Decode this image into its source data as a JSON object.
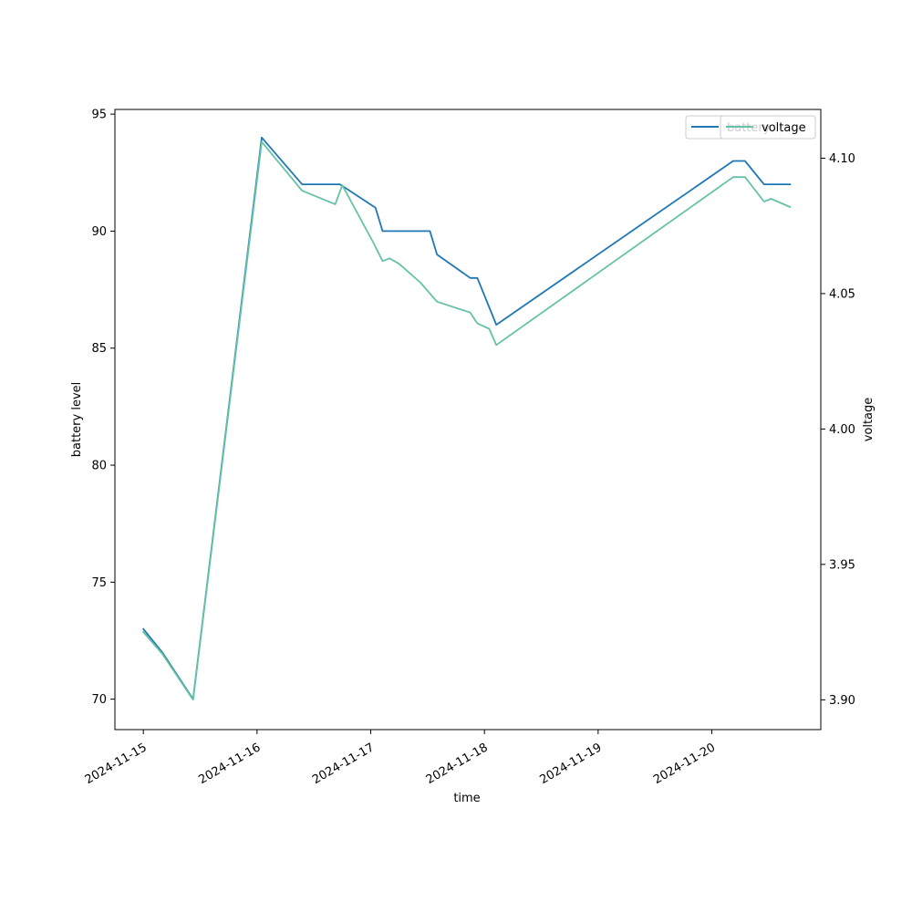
{
  "chart_data": {
    "type": "line",
    "xlabel": "time",
    "ylabel_left": "battery level",
    "ylabel_right": "voltage",
    "x_range": [
      "2024-11-14 18:00",
      "2024-11-20 23:00"
    ],
    "ylim_left": [
      68.7,
      95.2
    ],
    "ylim_right": [
      3.889,
      4.118
    ],
    "x_ticks": [
      "2024-11-15",
      "2024-11-16",
      "2024-11-17",
      "2024-11-18",
      "2024-11-19",
      "2024-11-20"
    ],
    "y_ticks_left": [
      "70",
      "75",
      "80",
      "85",
      "90",
      "95"
    ],
    "y_ticks_right": [
      "3.90",
      "3.95",
      "4.00",
      "4.05",
      "4.10"
    ],
    "grid": false,
    "colors": {
      "battery": "#1f77b4",
      "voltage": "#66c2a5"
    },
    "legends": [
      {
        "placement": "top-right",
        "label": "battery",
        "color": "#1f77b4"
      },
      {
        "placement": "top-right",
        "label": "voltage",
        "color": "#66c2a5"
      }
    ],
    "series": [
      {
        "name": "battery",
        "axis": "left",
        "color": "#1f77b4",
        "points": [
          [
            "2024-11-15 00:00",
            73
          ],
          [
            "2024-11-15 04:00",
            72
          ],
          [
            "2024-11-15 10:30",
            70
          ],
          [
            "2024-11-16 01:00",
            94
          ],
          [
            "2024-11-16 09:30",
            92
          ],
          [
            "2024-11-16 17:30",
            92
          ],
          [
            "2024-11-17 01:00",
            91
          ],
          [
            "2024-11-17 02:30",
            90
          ],
          [
            "2024-11-17 12:30",
            90
          ],
          [
            "2024-11-17 14:00",
            89
          ],
          [
            "2024-11-17 21:00",
            88
          ],
          [
            "2024-11-17 22:30",
            88
          ],
          [
            "2024-11-18 02:30",
            86
          ],
          [
            "2024-11-20 04:30",
            93
          ],
          [
            "2024-11-20 07:00",
            93
          ],
          [
            "2024-11-20 11:00",
            92
          ],
          [
            "2024-11-20 16:30",
            92
          ]
        ]
      },
      {
        "name": "voltage",
        "axis": "right",
        "color": "#66c2a5",
        "points": [
          [
            "2024-11-15 00:00",
            3.925
          ],
          [
            "2024-11-15 04:00",
            3.917
          ],
          [
            "2024-11-15 10:30",
            3.9
          ],
          [
            "2024-11-16 01:00",
            4.106
          ],
          [
            "2024-11-16 09:30",
            4.088
          ],
          [
            "2024-11-16 16:30",
            4.083
          ],
          [
            "2024-11-16 18:00",
            4.09
          ],
          [
            "2024-11-17 00:30",
            4.069
          ],
          [
            "2024-11-17 02:30",
            4.062
          ],
          [
            "2024-11-17 04:00",
            4.063
          ],
          [
            "2024-11-17 06:00",
            4.061
          ],
          [
            "2024-11-17 10:30",
            4.054
          ],
          [
            "2024-11-17 14:00",
            4.047
          ],
          [
            "2024-11-17 21:00",
            4.043
          ],
          [
            "2024-11-17 22:30",
            4.039
          ],
          [
            "2024-11-18 01:00",
            4.037
          ],
          [
            "2024-11-18 02:30",
            4.031
          ],
          [
            "2024-11-20 04:30",
            4.093
          ],
          [
            "2024-11-20 07:00",
            4.093
          ],
          [
            "2024-11-20 11:00",
            4.084
          ],
          [
            "2024-11-20 12:30",
            4.085
          ],
          [
            "2024-11-20 16:30",
            4.082
          ]
        ]
      }
    ]
  }
}
